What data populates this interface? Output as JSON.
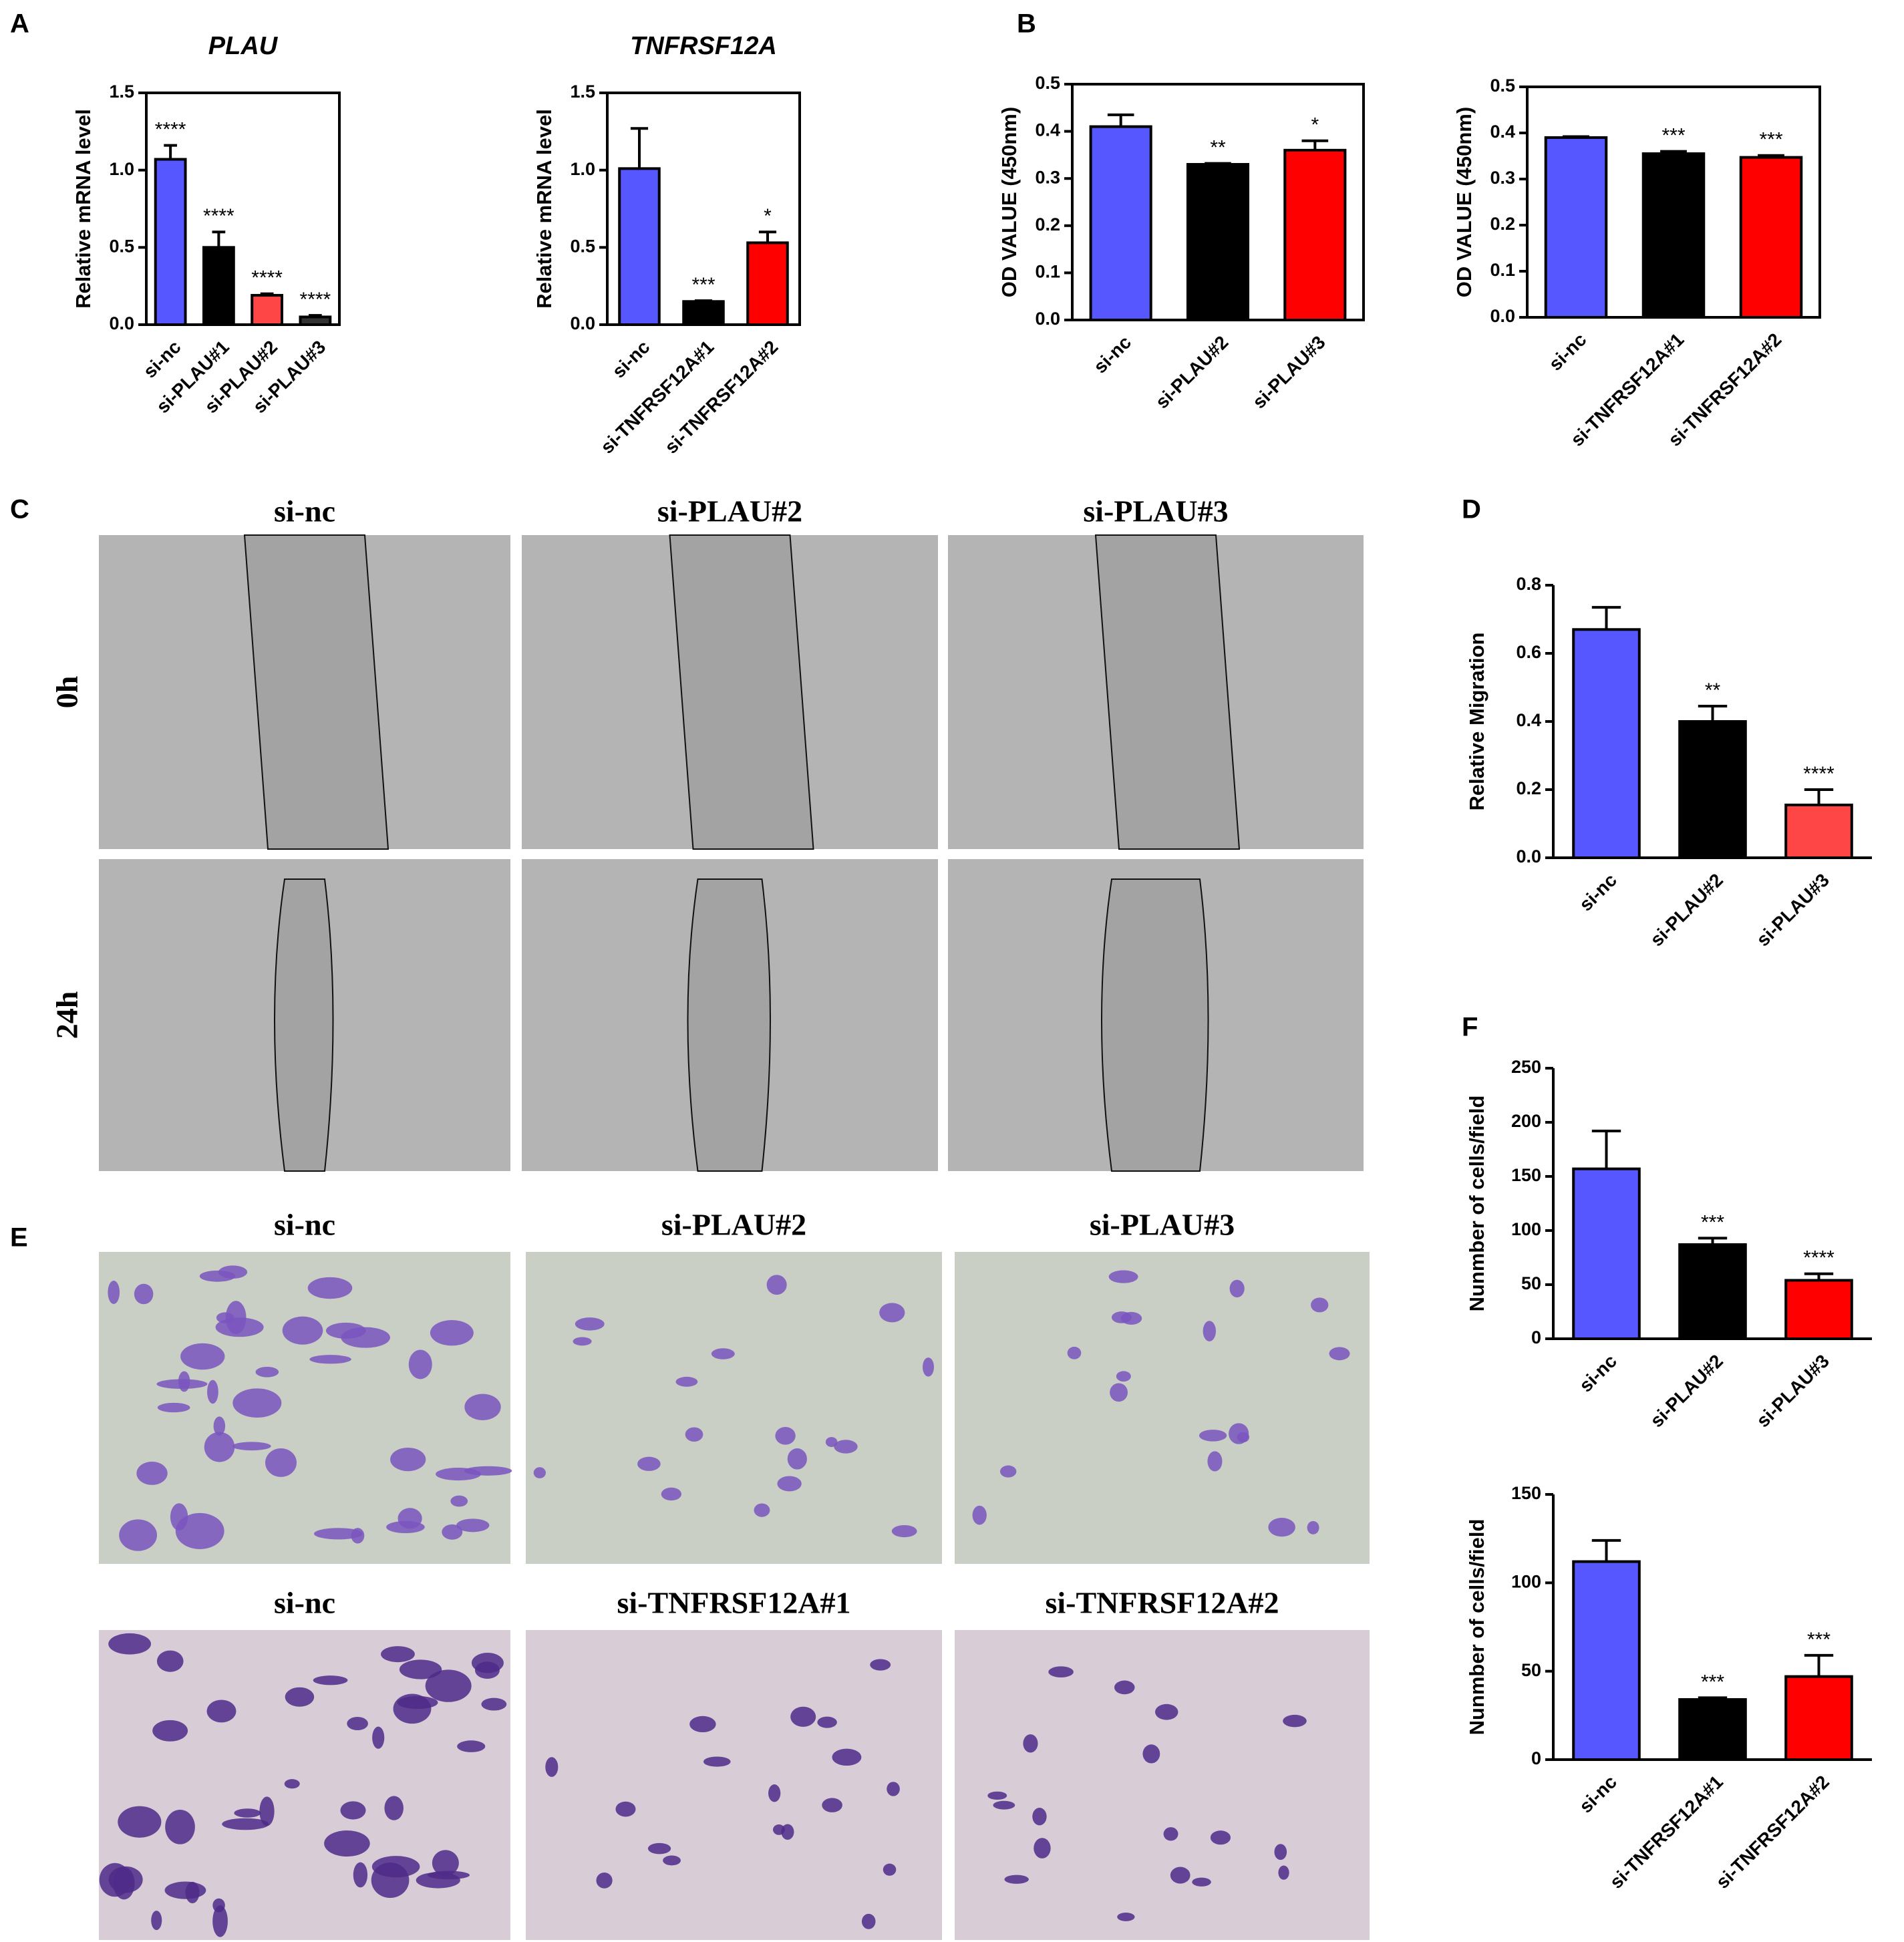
{
  "panel_labels": [
    "A",
    "B",
    "C",
    "D",
    "E",
    "F"
  ],
  "chart_data": [
    {
      "type": "bar",
      "title": "PLAU",
      "ylabel": "Relative mRNA level",
      "categories": [
        "si-nc",
        "si-PLAU#1",
        "si-PLAU#2",
        "si-PLAU#3"
      ],
      "values": [
        1.07,
        0.5,
        0.19,
        0.05
      ],
      "errors": [
        0.09,
        0.1,
        0.01,
        0.01
      ],
      "annotations": [
        "****",
        "****",
        "****",
        "****"
      ],
      "colors": [
        "#5757ff",
        "#000000",
        "#ff4646",
        "#333333"
      ],
      "ylim": [
        0,
        1.5
      ],
      "yticks": [
        {
          "value": 0,
          "label": "0.0"
        },
        0.5,
        {
          "value": 1,
          "label": "1.0"
        },
        1.5
      ]
    },
    {
      "type": "bar",
      "title": "TNFRSF12A",
      "ylabel": "Relative mRNA level",
      "categories": [
        "si-nc",
        "si-TNFRSF12A#1",
        "si-TNFRSF12A#2"
      ],
      "values": [
        1.01,
        0.15,
        0.53
      ],
      "errors": [
        0.26,
        0.005,
        0.07
      ],
      "annotations": [
        null,
        "***",
        "*"
      ],
      "colors": [
        "#5757ff",
        "#000000",
        "#ff0000"
      ],
      "ylim": [
        0,
        1.5
      ],
      "yticks": [
        {
          "value": 0,
          "label": "0.0"
        },
        0.5,
        {
          "value": 1,
          "label": "1.0"
        },
        1.5
      ]
    },
    {
      "type": "bar",
      "ylabel": "OD VALUE (450nm)",
      "categories": [
        "si-nc",
        "si-PLAU#2",
        "si-PLAU#3"
      ],
      "values": [
        0.41,
        0.33,
        0.36
      ],
      "errors": [
        0.025,
        0.002,
        0.02
      ],
      "annotations": [
        null,
        "**",
        "*"
      ],
      "colors": [
        "#5757ff",
        "#000000",
        "#ff0000"
      ],
      "ylim": [
        0,
        0.5
      ],
      "yticks": [
        {
          "value": 0,
          "label": "0.0"
        },
        0.1,
        0.2,
        0.3,
        0.4,
        0.5
      ]
    },
    {
      "type": "bar",
      "ylabel": "OD VALUE (450nm)",
      "categories": [
        "si-nc",
        "si-TNFRSF12A#1",
        "si-TNFRSF12A#2"
      ],
      "values": [
        0.39,
        0.355,
        0.347
      ],
      "errors": [
        0.002,
        0.005,
        0.004
      ],
      "annotations": [
        null,
        "***",
        "***"
      ],
      "colors": [
        "#5757ff",
        "#000000",
        "#ff0000"
      ],
      "ylim": [
        0,
        0.5
      ],
      "yticks": [
        {
          "value": 0,
          "label": "0.0"
        },
        0.1,
        0.2,
        0.3,
        0.4,
        0.5
      ]
    },
    {
      "type": "bar",
      "ylabel": "Relative Migration",
      "categories": [
        "si-nc",
        "si-PLAU#2",
        "si-PLAU#3"
      ],
      "values": [
        0.67,
        0.4,
        0.155
      ],
      "errors": [
        0.065,
        0.045,
        0.045
      ],
      "annotations": [
        null,
        "**",
        "****"
      ],
      "colors": [
        "#5757ff",
        "#000000",
        "#ff4646"
      ],
      "ylim": [
        0,
        0.8
      ],
      "yticks": [
        {
          "value": 0,
          "label": "0.0"
        },
        0.2,
        0.4,
        0.6,
        0.8
      ]
    },
    {
      "type": "bar",
      "ylabel": "Nunmber of cells/field",
      "categories": [
        "si-nc",
        "si-PLAU#2",
        "si-PLAU#3"
      ],
      "values": [
        157,
        87,
        54
      ],
      "errors": [
        35,
        6,
        6
      ],
      "annotations": [
        null,
        "***",
        "****"
      ],
      "colors": [
        "#5757ff",
        "#000000",
        "#ff0000"
      ],
      "ylim": [
        0,
        250
      ],
      "yticks": [
        0,
        50,
        100,
        150,
        200,
        250
      ]
    },
    {
      "type": "bar",
      "ylabel": "Nunmber of cells/field",
      "categories": [
        "si-nc",
        "si-TNFRSF12A#1",
        "si-TNFRSF12A#2"
      ],
      "values": [
        112,
        34,
        47
      ],
      "errors": [
        12,
        1,
        12
      ],
      "annotations": [
        null,
        "***",
        "***"
      ],
      "colors": [
        "#5757ff",
        "#000000",
        "#ff0000"
      ],
      "ylim": [
        0,
        150
      ],
      "yticks": [
        0,
        50,
        100,
        150
      ]
    }
  ],
  "scratch": {
    "columns": [
      "si-nc",
      "si-PLAU#2",
      "si-PLAU#3"
    ],
    "rows": [
      "0h",
      "24h"
    ]
  },
  "transwell": {
    "rows": [
      [
        "si-nc",
        "si-PLAU#2",
        "si-PLAU#3"
      ],
      [
        "si-nc",
        "si-TNFRSF12A#1",
        "si-TNFRSF12A#2"
      ]
    ]
  }
}
